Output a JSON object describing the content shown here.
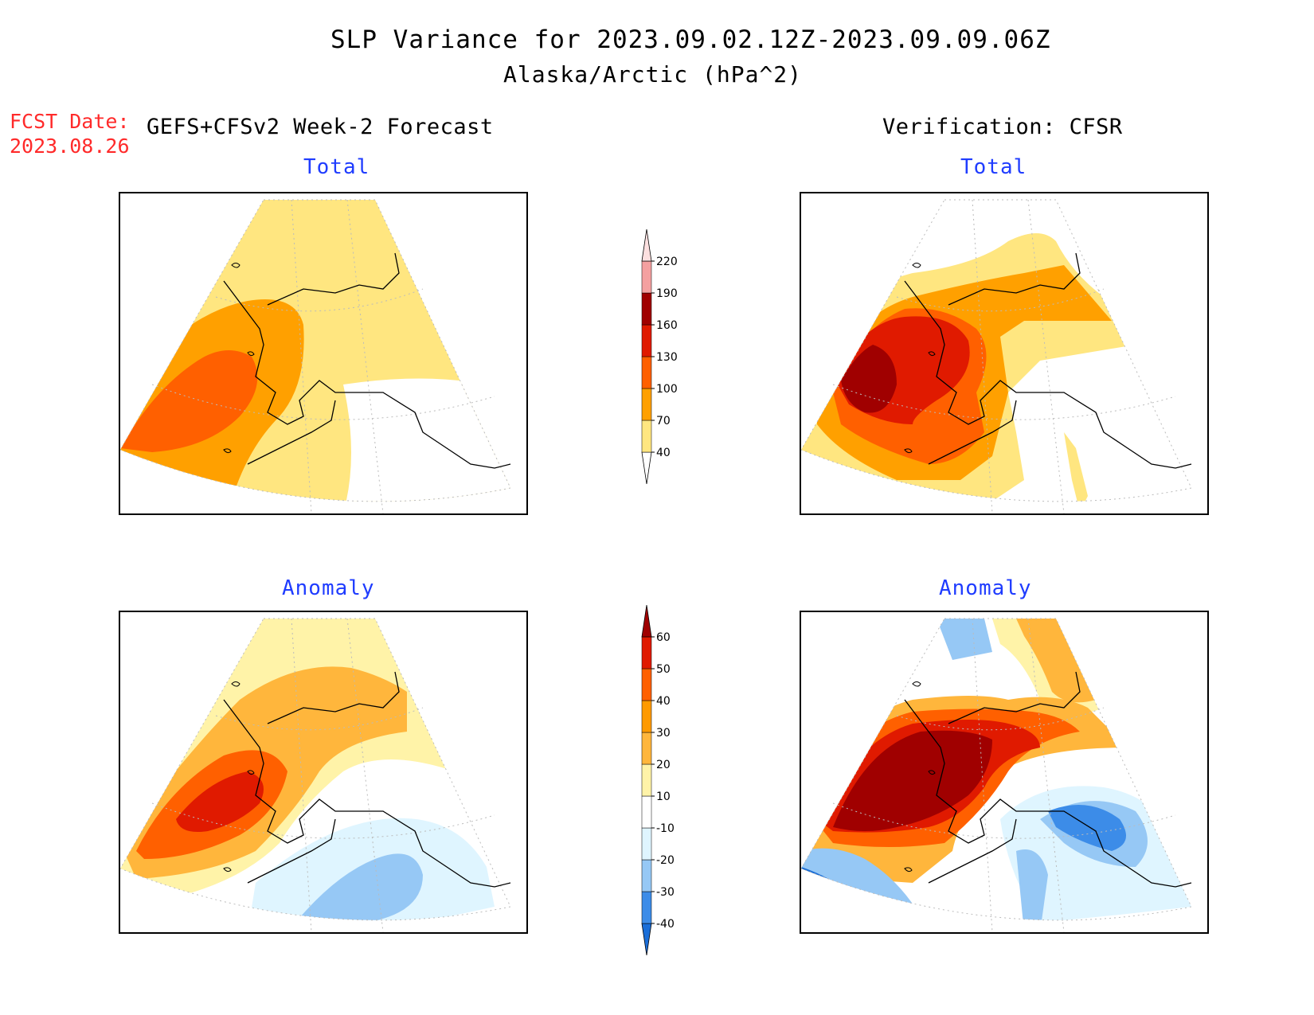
{
  "title": "SLP Variance for 2023.09.02.12Z-2023.09.09.06Z",
  "subtitle": "Alaska/Arctic (hPa^2)",
  "fcst_date_label": "FCST Date:",
  "fcst_date_value": "2023.08.26",
  "left_header": "GEFS+CFSv2 Week-2 Forecast",
  "right_header": "Verification: CFSR",
  "panels": {
    "forecast_total": {
      "title": "Total"
    },
    "verification_total": {
      "title": "Total"
    },
    "forecast_anomaly": {
      "title": "Anomaly"
    },
    "verification_anomaly": {
      "title": "Anomaly"
    }
  },
  "colorbars": {
    "total": {
      "levels": [
        "40",
        "70",
        "100",
        "130",
        "160",
        "190",
        "220"
      ],
      "colors": [
        "#ffe680",
        "#ffa000",
        "#ff6000",
        "#e01a00",
        "#a00000",
        "#f4a0a0",
        "#fde0e0"
      ]
    },
    "anomaly": {
      "levels": [
        "-40",
        "-30",
        "-20",
        "-10",
        "10",
        "20",
        "30",
        "40",
        "50",
        "60"
      ],
      "colors": [
        "#1a6ed8",
        "#3c8ce8",
        "#96c8f5",
        "#dff5ff",
        "#ffffff",
        "#fff3a8",
        "#ffb63c",
        "#ff9a00",
        "#ff6000",
        "#e01a00",
        "#a00000"
      ]
    }
  }
}
